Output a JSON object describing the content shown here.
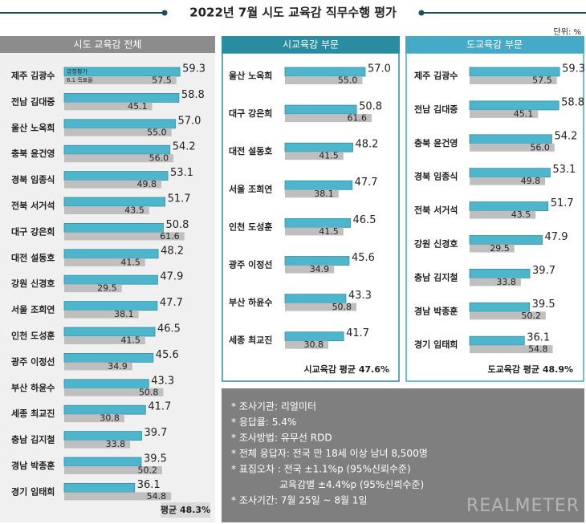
{
  "title": "2022년 7월 시도 교육감 직무수행 평가",
  "unit": "단위: %",
  "chart_data": [
    {
      "type": "bar",
      "title": "시도 교육감 전체",
      "categories": [
        "제주 김광수",
        "전남 김대중",
        "울산 노옥희",
        "충북 윤건영",
        "경북 임종식",
        "전북 서거석",
        "대구 강은희",
        "대전 설동호",
        "강원 신경호",
        "서울 조희연",
        "인천 도성훈",
        "광주 이정선",
        "부산 하윤수",
        "세종 최교진",
        "충남 김지철",
        "경남 박종훈",
        "경기 임태희"
      ],
      "series": [
        {
          "name": "긍정평가",
          "color": "#4db6cc",
          "values": [
            59.3,
            58.8,
            57.0,
            54.2,
            53.1,
            51.7,
            50.8,
            48.2,
            47.9,
            47.7,
            46.5,
            45.6,
            43.3,
            41.7,
            39.7,
            39.5,
            36.1
          ],
          "value_labels": [
            "59.3",
            "58.8",
            "57.0",
            "54.2",
            "53.1",
            "51.7",
            "50.8",
            "48.2",
            "47.9",
            "47.7",
            "46.5",
            "45.6",
            "43.3",
            "41.7",
            "39.7",
            "39.5",
            "36.1"
          ]
        },
        {
          "name": "6.1 득표율",
          "color": "#bfbfbf",
          "values": [
            57.5,
            45.1,
            55.0,
            56.0,
            49.8,
            43.5,
            61.6,
            41.5,
            29.5,
            38.1,
            41.5,
            34.9,
            50.8,
            30.8,
            33.8,
            50.2,
            54.8
          ],
          "value_labels": [
            "57.5",
            "45.1",
            "55.0",
            "56.0",
            "49.8",
            "43.5",
            "61.6",
            "41.5",
            "29.5",
            "38.1",
            "41.5",
            "34.9",
            "50.8",
            "30.8",
            "33.8",
            "50.2",
            "54.8"
          ]
        }
      ],
      "xlim": [
        0,
        60
      ],
      "footnote": "평균 48.3%"
    },
    {
      "type": "bar",
      "title": "시교육감 부문",
      "categories": [
        "울산 노옥희",
        "대구 강은희",
        "대전 설동호",
        "서울 조희연",
        "인천 도성훈",
        "광주 이정선",
        "부산 하윤수",
        "세종 최교진"
      ],
      "series": [
        {
          "color": "#4db6cc",
          "values": [
            57.0,
            50.8,
            48.2,
            47.7,
            46.5,
            45.6,
            43.3,
            41.7
          ],
          "value_labels": [
            "57.0",
            "50.8",
            "48.2",
            "47.7",
            "46.5",
            "45.6",
            "43.3",
            "41.7"
          ]
        },
        {
          "color": "#bfbfbf",
          "values": [
            55.0,
            61.6,
            41.5,
            38.1,
            41.5,
            34.9,
            50.8,
            30.8
          ],
          "value_labels": [
            "55.0",
            "61.6",
            "41.5",
            "38.1",
            "41.5",
            "34.9",
            "50.8",
            "30.8"
          ]
        }
      ],
      "xlim": [
        0,
        60
      ],
      "footnote": "시교육감 평균 47.6%"
    },
    {
      "type": "bar",
      "title": "도교육감 부문",
      "categories": [
        "제주 김광수",
        "전남 김대중",
        "충북 윤건영",
        "경북 임종식",
        "전북 서거석",
        "강원 신경호",
        "충남 김지철",
        "경남 박종훈",
        "경기 임태희"
      ],
      "series": [
        {
          "color": "#4db6cc",
          "values": [
            59.3,
            58.8,
            54.2,
            53.1,
            51.7,
            47.9,
            39.7,
            39.5,
            36.1
          ],
          "value_labels": [
            "59.3",
            "58.8",
            "54.2",
            "53.1",
            "51.7",
            "47.9",
            "39.7",
            "39.5",
            "36.1"
          ]
        },
        {
          "color": "#bfbfbf",
          "values": [
            57.5,
            45.1,
            56.0,
            49.8,
            43.5,
            29.5,
            33.8,
            50.2,
            54.8
          ],
          "value_labels": [
            "57.5",
            "45.1",
            "56.0",
            "49.8",
            "43.5",
            "29.5",
            "33.8",
            "50.2",
            "54.8"
          ]
        }
      ],
      "xlim": [
        0,
        60
      ],
      "footnote": "도교육감 평균 48.9%"
    }
  ],
  "notes": [
    "* 조사기관: 리얼미터",
    "* 응답률: 5.4%",
    "* 조사방법: 유무선 RDD",
    "* 전체 응답자: 전국 만 18세 이상 남녀 8,500명",
    "* 표집오차 : 전국 ±1.1%p (95%신뢰수준)",
    "교육감별 ±4.4%p (95%신뢰수준)",
    "* 조사기간: 7월 25일 ~ 8월 1일"
  ],
  "brand": "REALMETER"
}
